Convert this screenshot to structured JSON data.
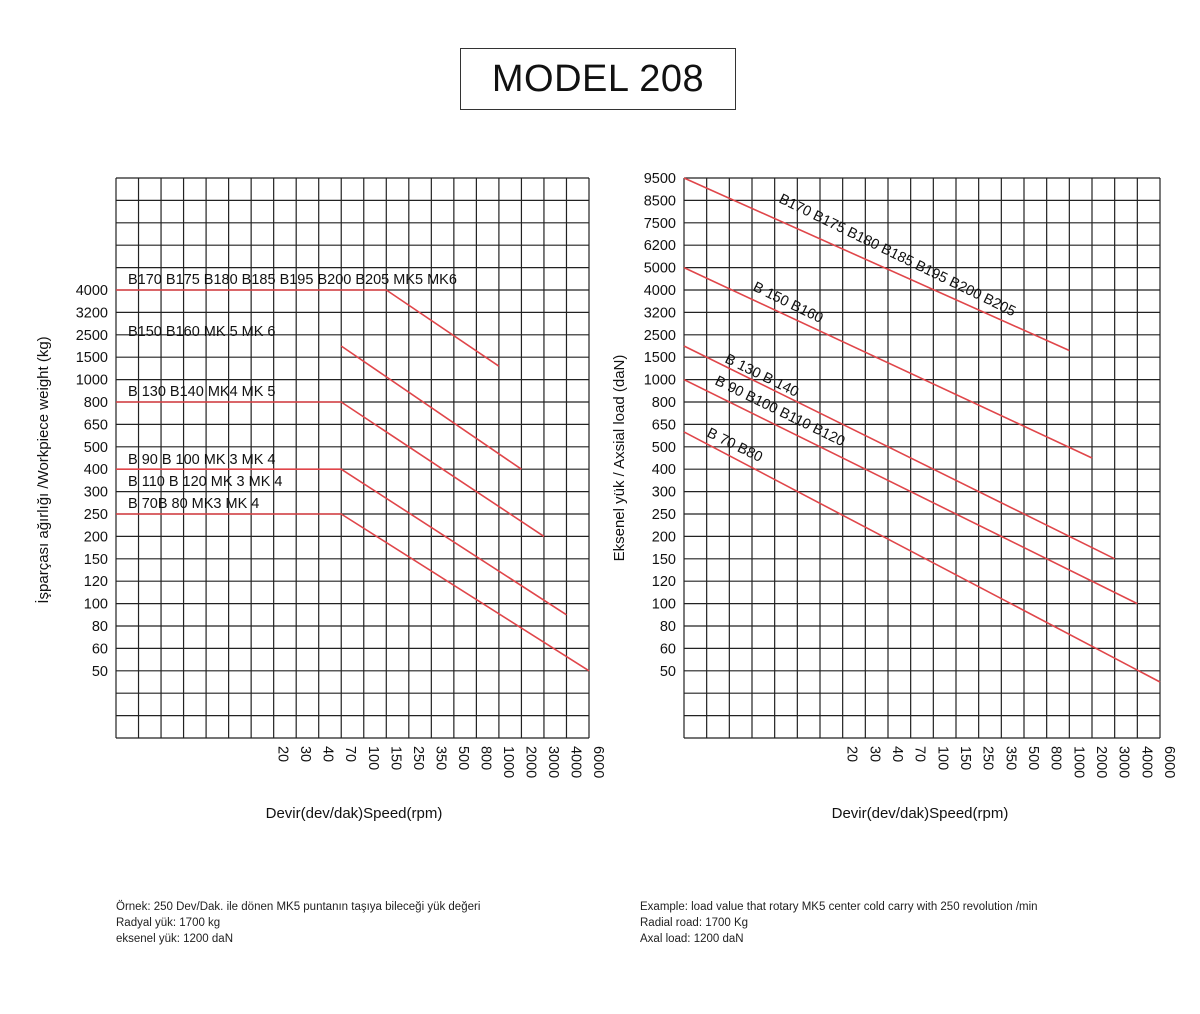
{
  "page": {
    "title": "MODEL 208"
  },
  "colors": {
    "line": "#e0464a",
    "grid": "#222222",
    "text": "#111111"
  },
  "chart_data": [
    {
      "type": "line",
      "ylabel": "İşparçası ağırlığı /Workpiece weight (kg)",
      "xlabel": "Devir(dev/dak)Speed(rpm)",
      "x_ticks": [
        "20",
        "30",
        "40",
        "70",
        "100",
        "150",
        "250",
        "350",
        "500",
        "800",
        "1000",
        "2000",
        "3000",
        "4000",
        "6000"
      ],
      "y_ticks": [
        "4000",
        "3200",
        "2500",
        "1500",
        "1000",
        "800",
        "650",
        "500",
        "400",
        "300",
        "250",
        "200",
        "150",
        "120",
        "100",
        "80",
        "60",
        "50"
      ],
      "grid": true,
      "series": [
        {
          "name": "B170 B175 B180 B185 B195 B200 B205 MK5 MK6",
          "points": [
            [
              null,
              4000
            ],
            [
              150,
              4000
            ],
            [
              1000,
              1300
            ]
          ]
        },
        {
          "name": "B150 B160 MK 5 MK 6",
          "points": [
            [
              70,
              2000
            ],
            [
              2000,
              400
            ]
          ]
        },
        {
          "name": "B 130 B140 MK4 MK 5",
          "points": [
            [
              null,
              800
            ],
            [
              70,
              800
            ],
            [
              3000,
              200
            ]
          ]
        },
        {
          "name": "B 90 B 100 MK 3 MK 4",
          "points": []
        },
        {
          "name": "B 110 B 120 MK 3 MK 4",
          "points": [
            [
              null,
              400
            ],
            [
              70,
              400
            ],
            [
              4000,
              90
            ]
          ]
        },
        {
          "name": "B 70B 80 MK3 MK 4",
          "points": [
            [
              null,
              250
            ],
            [
              70,
              250
            ],
            [
              6000,
              50
            ]
          ]
        }
      ]
    },
    {
      "type": "line",
      "ylabel": "Eksenel yük / Axsial load (daN)",
      "xlabel": "Devir(dev/dak)Speed(rpm)",
      "x_ticks": [
        "20",
        "30",
        "40",
        "70",
        "100",
        "150",
        "250",
        "350",
        "500",
        "800",
        "1000",
        "2000",
        "3000",
        "4000",
        "6000"
      ],
      "y_ticks": [
        "9500",
        "8500",
        "7500",
        "6200",
        "5000",
        "4000",
        "3200",
        "2500",
        "1500",
        "1000",
        "800",
        "650",
        "500",
        "400",
        "300",
        "250",
        "200",
        "150",
        "120",
        "100",
        "80",
        "60",
        "50"
      ],
      "grid": true,
      "series": [
        {
          "name": "B170 B175 B180 B185 B195 B200 B205",
          "points": [
            [
              null,
              9500
            ],
            [
              1000,
              1800
            ]
          ]
        },
        {
          "name": "B 150 B160",
          "points": [
            [
              null,
              5000
            ],
            [
              2000,
              450
            ]
          ]
        },
        {
          "name": "B 130 B 140",
          "points": [
            [
              null,
              2000
            ],
            [
              3000,
              150
            ]
          ]
        },
        {
          "name": "B 90 B100 B110 B120",
          "points": [
            [
              null,
              1000
            ],
            [
              4000,
              100
            ]
          ]
        },
        {
          "name": "B 70 B80",
          "points": [
            [
              null,
              600
            ],
            [
              6000,
              45
            ]
          ]
        }
      ]
    }
  ],
  "notes_tr": [
    "Örnek: 250 Dev/Dak. ile dönen MK5 puntanın taşıya bileceği yük değeri",
    "Radyal yük: 1700 kg",
    "eksenel yük: 1200 daN"
  ],
  "notes_en": [
    "Example: load value that rotary MK5 center cold carry with 250 revolution /min",
    "Radial road: 1700 Kg",
    "Axal load: 1200 daN"
  ]
}
